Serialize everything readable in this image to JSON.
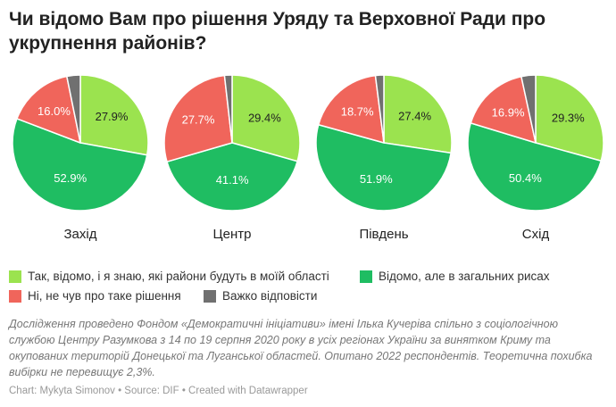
{
  "title": "Чи відомо Вам про рішення Уряду та Верховної Ради про укрупнення районів?",
  "chart_data": {
    "type": "pie",
    "series": [
      {
        "key": "yes_know",
        "name": "Так, відомо, і я знаю, які райони будуть в моїй області",
        "color": "#9be34f"
      },
      {
        "key": "general",
        "name": "Відомо, але в загальних рисах",
        "color": "#1fbd62"
      },
      {
        "key": "no",
        "name": "Ні, не чув про таке рішення",
        "color": "#f0655b"
      },
      {
        "key": "hard",
        "name": "Важко відповісти",
        "color": "#707070"
      }
    ],
    "pies": [
      {
        "category": "Захід",
        "values": {
          "yes_know": 27.9,
          "general": 52.9,
          "no": 16.0,
          "hard": 3.2
        },
        "labels": {
          "yes_know": "27.9%",
          "general": "52.9%",
          "no": "16.0%"
        }
      },
      {
        "category": "Центр",
        "values": {
          "yes_know": 29.4,
          "general": 41.1,
          "no": 27.7,
          "hard": 1.8
        },
        "labels": {
          "yes_know": "29.4%",
          "general": "41.1%",
          "no": "27.7%"
        }
      },
      {
        "category": "Південь",
        "values": {
          "yes_know": 27.4,
          "general": 51.9,
          "no": 18.7,
          "hard": 2.0
        },
        "labels": {
          "yes_know": "27.4%",
          "general": "51.9%",
          "no": "18.7%"
        }
      },
      {
        "category": "Схід",
        "values": {
          "yes_know": 29.3,
          "general": 50.4,
          "no": 16.9,
          "hard": 3.4
        },
        "labels": {
          "yes_know": "29.3%",
          "general": "50.4%",
          "no": "16.9%"
        }
      }
    ]
  },
  "note": "Дослідження проведено Фондом «Демократичні ініціативи» імені Ілька Кучеріва спільно з соціологічною службою Центру Разумкова з 14 по 19 серпня 2020 року в усіх регіонах України за винятком Криму та окупованих територій Донецької та Луганської областей. Опитано 2022 респондентів. Теоретична похибка вибірки не перевищує 2,3%.",
  "credit": "Chart: Mykyta Simonov • Source: DIF • Created with Datawrapper"
}
